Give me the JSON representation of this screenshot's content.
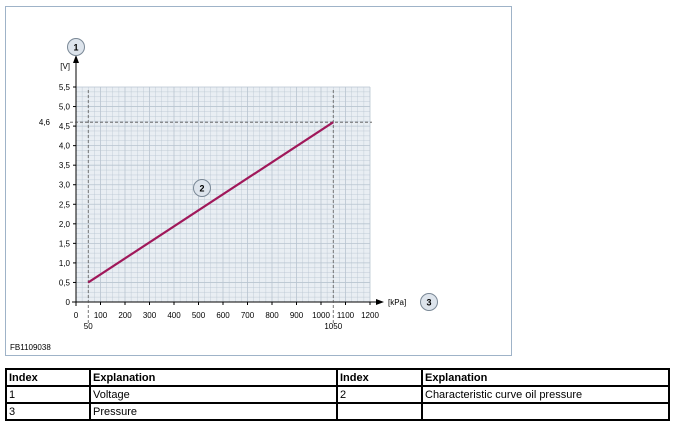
{
  "chart_data": {
    "type": "line",
    "xlabel": "",
    "ylabel": "",
    "x_unit": "[kPa]",
    "y_unit": "[V]",
    "xlim": [
      0,
      1200
    ],
    "ylim": [
      0,
      5.5
    ],
    "grid": true,
    "x_ticks": [
      "0",
      "100",
      "200",
      "300",
      "400",
      "500",
      "600",
      "700",
      "800",
      "900",
      "1000",
      "1100",
      "1200"
    ],
    "y_ticks": [
      "0",
      "0,5",
      "1,0",
      "1,5",
      "2,0",
      "2,5",
      "3,0",
      "3,5",
      "4,0",
      "4,5",
      "5,0",
      "5,5"
    ],
    "x_markers": [
      {
        "value": 50,
        "label": "50"
      },
      {
        "value": 1050,
        "label": "1050"
      }
    ],
    "y_marker": {
      "value": 4.6,
      "label": "4,6"
    },
    "series": [
      {
        "x": [
          50,
          1050
        ],
        "y": [
          0.5,
          4.6
        ],
        "color": "#a0185a"
      }
    ],
    "callouts": [
      {
        "label": "1",
        "target": "y-axis"
      },
      {
        "label": "2",
        "target": "curve"
      },
      {
        "label": "3",
        "target": "x-axis"
      }
    ],
    "colors": {
      "grid_bg": "#e9eef3",
      "grid_line": "#b8c4d0",
      "marker_line": "#555555",
      "callout_fill": "#dde4ec"
    }
  },
  "figure_id": "FB1109038",
  "legend": {
    "headers": [
      "Index",
      "Explanation",
      "Index",
      "Explanation"
    ],
    "rows": [
      [
        "1",
        "Voltage",
        "2",
        "Characteristic curve oil pressure"
      ],
      [
        "3",
        "Pressure",
        "",
        ""
      ]
    ]
  }
}
